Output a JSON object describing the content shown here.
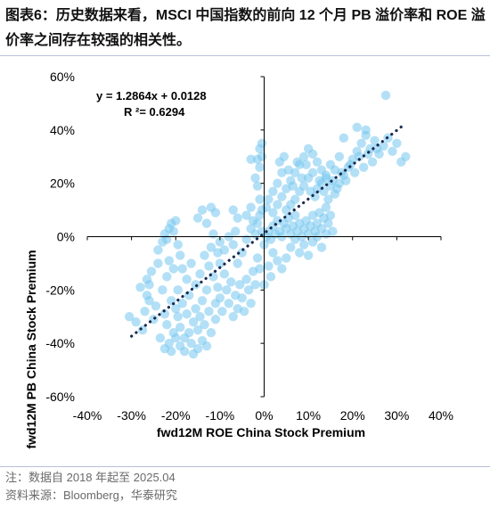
{
  "header": {
    "title": "图表6：历史数据来看，MSCI 中国指数的前向 12 个月 PB 溢价率和 ROE 溢价率之间存在较强的相关性。"
  },
  "footer": {
    "note": "注：数据自 2018 年起至 2025.04",
    "source": "资料来源：Bloomberg，华泰研究"
  },
  "chart_data": {
    "type": "scatter",
    "title": "",
    "xlabel": "fwd12M ROE China Stock Premium",
    "ylabel": "fwd12M PB China Stock Premium",
    "xlim": [
      -0.4,
      0.4
    ],
    "ylim": [
      -0.6,
      0.6
    ],
    "x_ticks": [
      -0.4,
      -0.3,
      -0.2,
      -0.1,
      0,
      0.1,
      0.2,
      0.3,
      0.4
    ],
    "x_tick_labels": [
      "-40%",
      "-30%",
      "-20%",
      "-10%",
      "0%",
      "10%",
      "20%",
      "30%",
      "40%"
    ],
    "y_ticks": [
      -0.6,
      -0.4,
      -0.2,
      0,
      0.2,
      0.4,
      0.6
    ],
    "y_tick_labels": [
      "-60%",
      "-40%",
      "-20%",
      "0%",
      "20%",
      "40%",
      "60%"
    ],
    "grid": false,
    "point_color": "#74c6ee",
    "trend_color": "#1a2b52",
    "trendline": {
      "slope": 1.2864,
      "intercept": 0.0128,
      "x_range": [
        -0.3,
        0.31
      ]
    },
    "annotations": {
      "equation": "y = 1.2864x + 0.0128",
      "r_squared": "R ²= 0.6294"
    },
    "points": [
      [
        -0.305,
        -0.3
      ],
      [
        -0.29,
        -0.32
      ],
      [
        -0.275,
        -0.35
      ],
      [
        -0.27,
        -0.28
      ],
      [
        -0.265,
        -0.22
      ],
      [
        -0.26,
        -0.18
      ],
      [
        -0.255,
        -0.13
      ],
      [
        -0.25,
        -0.31
      ],
      [
        -0.245,
        -0.26
      ],
      [
        -0.24,
        -0.1
      ],
      [
        -0.235,
        -0.38
      ],
      [
        -0.23,
        -0.2
      ],
      [
        -0.225,
        -0.29
      ],
      [
        -0.225,
        -0.42
      ],
      [
        -0.22,
        -0.15
      ],
      [
        -0.22,
        -0.33
      ],
      [
        -0.215,
        -0.09
      ],
      [
        -0.215,
        -0.4
      ],
      [
        -0.21,
        -0.24
      ],
      [
        -0.21,
        -0.43
      ],
      [
        -0.205,
        -0.36
      ],
      [
        -0.205,
        -0.12
      ],
      [
        -0.2,
        -0.27
      ],
      [
        -0.2,
        -0.38
      ],
      [
        -0.195,
        -0.3
      ],
      [
        -0.195,
        -0.2
      ],
      [
        -0.19,
        -0.41
      ],
      [
        -0.19,
        -0.34
      ],
      [
        -0.185,
        -0.25
      ],
      [
        -0.18,
        -0.38
      ],
      [
        -0.18,
        -0.43
      ],
      [
        -0.175,
        -0.29
      ],
      [
        -0.17,
        -0.22
      ],
      [
        -0.17,
        -0.36
      ],
      [
        -0.165,
        -0.4
      ],
      [
        -0.16,
        -0.32
      ],
      [
        -0.16,
        -0.44
      ],
      [
        -0.155,
        -0.27
      ],
      [
        -0.15,
        -0.35
      ],
      [
        -0.15,
        -0.42
      ],
      [
        -0.145,
        -0.3
      ],
      [
        -0.14,
        -0.24
      ],
      [
        -0.14,
        -0.39
      ],
      [
        -0.135,
        -0.33
      ],
      [
        -0.13,
        -0.2
      ],
      [
        -0.13,
        -0.41
      ],
      [
        -0.125,
        -0.28
      ],
      [
        -0.12,
        -0.36
      ],
      [
        -0.115,
        -0.15
      ],
      [
        -0.11,
        -0.25
      ],
      [
        -0.11,
        -0.31
      ],
      [
        -0.105,
        -0.19
      ],
      [
        -0.1,
        -0.1
      ],
      [
        -0.1,
        -0.23
      ],
      [
        -0.095,
        -0.28
      ],
      [
        -0.09,
        -0.14
      ],
      [
        -0.085,
        -0.2
      ],
      [
        -0.08,
        -0.25
      ],
      [
        -0.075,
        -0.17
      ],
      [
        -0.07,
        -0.3
      ],
      [
        -0.065,
        -0.22
      ],
      [
        -0.06,
        -0.27
      ],
      [
        -0.055,
        -0.18
      ],
      [
        -0.05,
        -0.23
      ],
      [
        -0.045,
        -0.28
      ],
      [
        -0.04,
        -0.16
      ],
      [
        -0.035,
        -0.2
      ],
      [
        -0.03,
        -0.25
      ],
      [
        -0.025,
        -0.13
      ],
      [
        -0.02,
        -0.18
      ],
      [
        -0.015,
        -0.08
      ],
      [
        -0.01,
        -0.12
      ],
      [
        -0.24,
        -0.05
      ],
      [
        -0.23,
        -0.02
      ],
      [
        -0.225,
        0.01
      ],
      [
        -0.22,
        -0.01
      ],
      [
        -0.215,
        0.03
      ],
      [
        -0.21,
        0.05
      ],
      [
        -0.205,
        0.02
      ],
      [
        -0.2,
        0.06
      ],
      [
        -0.195,
        -0.03
      ],
      [
        -0.265,
        -0.16
      ],
      [
        -0.26,
        -0.24
      ],
      [
        -0.28,
        -0.19
      ],
      [
        -0.19,
        -0.07
      ],
      [
        -0.185,
        -0.12
      ],
      [
        -0.175,
        -0.16
      ],
      [
        -0.165,
        -0.1
      ],
      [
        -0.155,
        -0.18
      ],
      [
        -0.145,
        -0.14
      ],
      [
        -0.135,
        -0.07
      ],
      [
        -0.125,
        -0.11
      ],
      [
        -0.12,
        -0.04
      ],
      [
        -0.115,
        0.01
      ],
      [
        -0.105,
        -0.06
      ],
      [
        -0.1,
        -0.02
      ],
      [
        -0.09,
        -0.05
      ],
      [
        -0.08,
        0.0
      ],
      [
        -0.07,
        -0.03
      ],
      [
        -0.065,
        0.02
      ],
      [
        -0.06,
        -0.1
      ],
      [
        -0.05,
        -0.06
      ],
      [
        -0.04,
        -0.01
      ],
      [
        -0.03,
        0.03
      ],
      [
        -0.025,
        0.06
      ],
      [
        -0.02,
        0.01
      ],
      [
        -0.015,
        0.05
      ],
      [
        -0.01,
        0.08
      ],
      [
        -0.005,
        0.02
      ],
      [
        -0.005,
        0.1
      ],
      [
        -0.01,
        0.14
      ],
      [
        -0.015,
        0.19
      ],
      [
        -0.02,
        0.22
      ],
      [
        -0.01,
        0.26
      ],
      [
        -0.005,
        0.3
      ],
      [
        -0.015,
        0.29
      ],
      [
        -0.03,
        0.29
      ],
      [
        -0.01,
        0.33
      ],
      [
        -0.005,
        0.35
      ],
      [
        -0.11,
        0.09
      ],
      [
        -0.12,
        0.11
      ],
      [
        -0.14,
        0.1
      ],
      [
        -0.15,
        0.07
      ],
      [
        -0.13,
        0.05
      ],
      [
        -0.06,
        0.07
      ],
      [
        -0.07,
        0.1
      ],
      [
        -0.03,
        0.11
      ],
      [
        -0.04,
        0.08
      ],
      [
        0.0,
        -0.03
      ],
      [
        0.005,
        0.0
      ],
      [
        0.01,
        0.02
      ],
      [
        0.015,
        -0.01
      ],
      [
        0.02,
        0.04
      ],
      [
        0.025,
        0.01
      ],
      [
        0.03,
        0.06
      ],
      [
        0.035,
        0.02
      ],
      [
        0.04,
        0.0
      ],
      [
        0.045,
        0.05
      ],
      [
        0.05,
        0.03
      ],
      [
        0.055,
        0.07
      ],
      [
        0.06,
        0.01
      ],
      [
        0.065,
        0.04
      ],
      [
        0.07,
        0.08
      ],
      [
        0.075,
        0.02
      ],
      [
        0.08,
        0.05
      ],
      [
        0.085,
        0.0
      ],
      [
        0.09,
        0.03
      ],
      [
        0.095,
        0.06
      ],
      [
        0.1,
        0.01
      ],
      [
        0.105,
        0.04
      ],
      [
        0.11,
        0.08
      ],
      [
        0.115,
        0.02
      ],
      [
        0.12,
        0.05
      ],
      [
        0.125,
        0.09
      ],
      [
        0.13,
        0.03
      ],
      [
        0.135,
        0.07
      ],
      [
        0.14,
        0.11
      ],
      [
        0.145,
        0.05
      ],
      [
        0.15,
        0.08
      ],
      [
        0.155,
        0.02
      ],
      [
        0.02,
        0.09
      ],
      [
        0.03,
        0.12
      ],
      [
        0.04,
        0.15
      ],
      [
        0.05,
        0.18
      ],
      [
        0.06,
        0.21
      ],
      [
        0.07,
        0.24
      ],
      [
        0.08,
        0.27
      ],
      [
        0.09,
        0.3
      ],
      [
        0.1,
        0.33
      ],
      [
        0.11,
        0.31
      ],
      [
        0.12,
        0.28
      ],
      [
        0.13,
        0.25
      ],
      [
        0.14,
        0.22
      ],
      [
        0.15,
        0.19
      ],
      [
        0.16,
        0.16
      ],
      [
        0.17,
        0.2
      ],
      [
        0.18,
        0.23
      ],
      [
        0.19,
        0.26
      ],
      [
        0.2,
        0.29
      ],
      [
        0.21,
        0.32
      ],
      [
        0.22,
        0.35
      ],
      [
        0.23,
        0.38
      ],
      [
        0.24,
        0.33
      ],
      [
        0.25,
        0.36
      ],
      [
        0.26,
        0.31
      ],
      [
        0.27,
        0.34
      ],
      [
        0.28,
        0.37
      ],
      [
        0.29,
        0.32
      ],
      [
        0.3,
        0.35
      ],
      [
        0.31,
        0.28
      ],
      [
        0.32,
        0.3
      ],
      [
        0.275,
        0.53
      ],
      [
        0.23,
        0.4
      ],
      [
        0.21,
        0.41
      ],
      [
        0.18,
        0.37
      ],
      [
        0.17,
        0.3
      ],
      [
        0.16,
        0.25
      ],
      [
        0.15,
        0.27
      ],
      [
        0.14,
        0.23
      ],
      [
        0.13,
        0.2
      ],
      [
        0.12,
        0.18
      ],
      [
        0.11,
        0.24
      ],
      [
        0.1,
        0.22
      ],
      [
        0.09,
        0.19
      ],
      [
        0.08,
        0.17
      ],
      [
        0.07,
        0.14
      ],
      [
        0.06,
        0.12
      ],
      [
        0.05,
        0.1
      ],
      [
        0.04,
        0.24
      ],
      [
        0.03,
        0.2
      ],
      [
        0.02,
        0.17
      ],
      [
        0.01,
        0.14
      ],
      [
        0.005,
        0.11
      ],
      [
        0.035,
        0.28
      ],
      [
        0.045,
        0.3
      ],
      [
        0.055,
        0.25
      ],
      [
        0.065,
        0.19
      ],
      [
        0.075,
        0.28
      ],
      [
        0.085,
        0.22
      ],
      [
        0.095,
        0.27
      ],
      [
        0.105,
        0.17
      ],
      [
        0.115,
        0.15
      ],
      [
        0.125,
        0.21
      ],
      [
        0.135,
        0.17
      ],
      [
        0.145,
        0.14
      ],
      [
        0.155,
        0.21
      ],
      [
        0.165,
        0.18
      ],
      [
        0.175,
        0.24
      ],
      [
        0.185,
        0.21
      ],
      [
        0.195,
        0.27
      ],
      [
        0.205,
        0.24
      ],
      [
        0.215,
        0.3
      ],
      [
        0.225,
        0.26
      ],
      [
        0.235,
        0.31
      ],
      [
        0.245,
        0.28
      ],
      [
        0.255,
        0.33
      ],
      [
        0.02,
        -0.06
      ],
      [
        0.03,
        -0.09
      ],
      [
        0.04,
        -0.12
      ],
      [
        0.05,
        -0.08
      ],
      [
        0.01,
        -0.11
      ],
      [
        0.015,
        -0.15
      ],
      [
        0.0,
        -0.18
      ],
      [
        0.06,
        -0.04
      ],
      [
        0.07,
        -0.01
      ],
      [
        0.08,
        -0.06
      ],
      [
        0.09,
        -0.03
      ],
      [
        0.1,
        -0.07
      ],
      [
        0.11,
        -0.02
      ],
      [
        0.12,
        0.0
      ],
      [
        0.13,
        -0.04
      ],
      [
        0.14,
        0.01
      ]
    ]
  }
}
